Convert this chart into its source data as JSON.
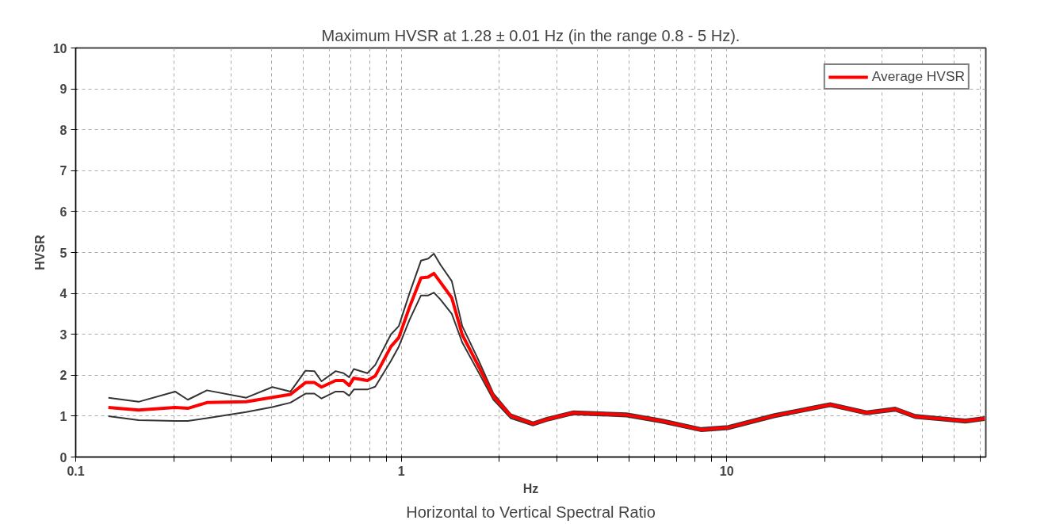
{
  "chart_data": {
    "type": "line",
    "title": "Maximum HVSR at 1.28 ± 0.01 Hz (in the range 0.8 - 5 Hz).",
    "xlabel": "Hz",
    "ylabel": "HVSR",
    "annotations": [
      "Horizontal to Vertical Spectral Ratio"
    ],
    "log": "x",
    "xlim": [
      0.1,
      62.5
    ],
    "ylim": [
      0,
      10
    ],
    "xticks": [
      0.1,
      {
        "value": 0.2,
        "label": null
      },
      {
        "value": 0.3,
        "label": null
      },
      {
        "value": 0.4,
        "label": null
      },
      {
        "value": 0.5,
        "label": null
      },
      {
        "value": 0.6,
        "label": null
      },
      {
        "value": 0.7,
        "label": null
      },
      {
        "value": 0.8,
        "label": null
      },
      {
        "value": 0.9,
        "label": null
      },
      1,
      {
        "value": 2,
        "label": null
      },
      {
        "value": 3,
        "label": null
      },
      {
        "value": 4,
        "label": null
      },
      {
        "value": 5,
        "label": null
      },
      {
        "value": 6,
        "label": null
      },
      {
        "value": 7,
        "label": null
      },
      {
        "value": 8,
        "label": null
      },
      {
        "value": 9,
        "label": null
      },
      10,
      {
        "value": 20,
        "label": null
      },
      {
        "value": 30,
        "label": null
      },
      {
        "value": 40,
        "label": null
      },
      {
        "value": 50,
        "label": null
      },
      {
        "value": 60,
        "label": null
      }
    ],
    "yticks": [
      0,
      1,
      2,
      3,
      4,
      5,
      6,
      7,
      8,
      9,
      10
    ],
    "grid": true,
    "legend": "top right",
    "line_style": "solid",
    "x": [
      0.126,
      0.156,
      0.202,
      0.221,
      0.253,
      0.334,
      0.402,
      0.457,
      0.508,
      0.541,
      0.569,
      0.629,
      0.665,
      0.692,
      0.715,
      0.787,
      0.832,
      0.93,
      0.983,
      1.06,
      1.15,
      1.21,
      1.26,
      1.32,
      1.43,
      1.54,
      1.72,
      1.92,
      2.17,
      2.54,
      2.8,
      3.38,
      4.92,
      6.32,
      8.36,
      10.1,
      14.0,
      20.8,
      26.9,
      33.0,
      38.0,
      44.7,
      54.1,
      62.0
    ],
    "series": [
      {
        "name": "Average HVSR",
        "color": "#ff0000",
        "values": [
          1.21,
          1.15,
          1.21,
          1.19,
          1.33,
          1.35,
          1.46,
          1.53,
          1.82,
          1.82,
          1.71,
          1.87,
          1.87,
          1.75,
          1.93,
          1.87,
          1.98,
          2.7,
          2.92,
          3.66,
          4.38,
          4.4,
          4.49,
          4.27,
          3.89,
          2.99,
          2.25,
          1.48,
          1.01,
          0.81,
          0.92,
          1.08,
          1.03,
          0.88,
          0.67,
          0.72,
          1.01,
          1.28,
          1.08,
          1.17,
          0.99,
          0.94,
          0.88,
          0.94
        ],
        "marker": "none"
      },
      {
        "color": "#333333",
        "values": [
          1.45,
          1.35,
          1.6,
          1.4,
          1.63,
          1.45,
          1.71,
          1.6,
          2.11,
          2.1,
          1.85,
          2.1,
          2.05,
          1.95,
          2.15,
          2.05,
          2.25,
          3.0,
          3.2,
          4.0,
          4.8,
          4.85,
          4.97,
          4.7,
          4.3,
          3.2,
          2.4,
          1.55,
          1.05,
          0.85,
          0.96,
          1.12,
          1.07,
          0.92,
          0.71,
          0.76,
          1.05,
          1.32,
          1.12,
          1.21,
          1.03,
          0.98,
          0.92,
          0.98
        ]
      },
      {
        "color": "#333333",
        "values": [
          1.0,
          0.9,
          0.88,
          0.88,
          0.95,
          1.1,
          1.22,
          1.33,
          1.55,
          1.55,
          1.43,
          1.6,
          1.6,
          1.5,
          1.65,
          1.65,
          1.72,
          2.35,
          2.7,
          3.35,
          3.95,
          3.95,
          4.02,
          3.85,
          3.5,
          2.8,
          2.1,
          1.4,
          0.95,
          0.77,
          0.88,
          1.04,
          0.99,
          0.84,
          0.63,
          0.68,
          0.97,
          1.24,
          1.04,
          1.13,
          0.95,
          0.9,
          0.84,
          0.9
        ]
      }
    ]
  }
}
